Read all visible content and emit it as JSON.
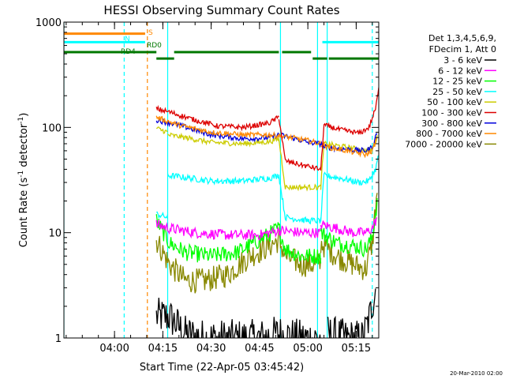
{
  "chart_data": {
    "type": "line",
    "title": "HESSI Observing Summary Count Rates",
    "xlabel": "Start Time (22-Apr-05 03:45:42)",
    "ylabel_main": "Count Rate (s",
    "ylabel_sup1": "-1",
    "ylabel_mid": " detector",
    "ylabel_sup2": "-1",
    "ylabel_end": ")",
    "y_scale": "log",
    "ylim": [
      1,
      1000
    ],
    "y_ticks": [
      {
        "value": 1,
        "label": "1"
      },
      {
        "value": 10,
        "label": "10"
      },
      {
        "value": 100,
        "label": "100"
      },
      {
        "value": 1000,
        "label": "1000"
      }
    ],
    "x_range_min": [
      -15.7,
      82
    ],
    "x_ticks": [
      {
        "value": 0,
        "label": "04:00"
      },
      {
        "value": 15,
        "label": "04:15"
      },
      {
        "value": 30,
        "label": "04:30"
      },
      {
        "value": 45,
        "label": "04:45"
      },
      {
        "value": 60,
        "label": "05:00"
      },
      {
        "value": 75,
        "label": "05:15"
      }
    ],
    "legend_header": [
      "Det 1,3,4,5,6,9,",
      "FDecim 1, Att 0"
    ],
    "series": [
      {
        "name": "3 - 6 keV",
        "color": "#000000"
      },
      {
        "name": "6 - 12 keV",
        "color": "#ff00ff"
      },
      {
        "name": "12 - 25 keV",
        "color": "#00ff00"
      },
      {
        "name": "25 - 50 keV",
        "color": "#00ffff"
      },
      {
        "name": "50 - 100 keV",
        "color": "#cccc00"
      },
      {
        "name": "100 - 300 keV",
        "color": "#dd0000"
      },
      {
        "name": "300 - 800 keV",
        "color": "#0000dd"
      },
      {
        "name": "800 - 7000 keV",
        "color": "#ff8800"
      },
      {
        "name": "7000 - 20000 keV",
        "color": "#888800"
      }
    ],
    "curves": [
      {
        "color": "#000000",
        "noise": 0.18,
        "segments": [
          [
            [
              13,
              1.6
            ],
            [
              17,
              1.6
            ],
            [
              22,
              1.1
            ],
            [
              28,
              1.0
            ],
            [
              35,
              1.0
            ],
            [
              45,
              1.0
            ],
            [
              51,
              1.1
            ]
          ],
          [
            [
              51,
              1.1
            ],
            [
              58,
              1.0
            ],
            [
              64,
              1.0
            ]
          ],
          [
            [
              66,
              1.1
            ],
            [
              72,
              1.0
            ],
            [
              77,
              1.0
            ],
            [
              79,
              1.5
            ],
            [
              81,
              3.0
            ]
          ]
        ]
      },
      {
        "color": "#888800",
        "noise": 0.12,
        "segments": [
          [
            [
              13,
              8.5
            ],
            [
              17,
              5
            ],
            [
              22,
              3.5
            ],
            [
              28,
              3.5
            ],
            [
              35,
              4
            ],
            [
              42,
              6
            ],
            [
              48,
              7.5
            ],
            [
              51,
              8.5
            ]
          ],
          [
            [
              51,
              8.5
            ],
            [
              53,
              6
            ],
            [
              58,
              5
            ],
            [
              64,
              5
            ]
          ],
          [
            [
              64,
              8
            ],
            [
              69,
              6
            ],
            [
              74,
              5
            ],
            [
              78,
              4.5
            ],
            [
              80,
              8
            ],
            [
              81.5,
              25
            ]
          ]
        ]
      },
      {
        "color": "#00ff00",
        "noise": 0.08,
        "segments": [
          [
            [
              13,
              13
            ],
            [
              17,
              8
            ],
            [
              22,
              6.5
            ],
            [
              30,
              6
            ],
            [
              38,
              6.5
            ],
            [
              45,
              8.5
            ],
            [
              51,
              11
            ]
          ],
          [
            [
              51,
              11
            ],
            [
              53,
              7
            ],
            [
              58,
              6
            ],
            [
              64,
              6
            ]
          ],
          [
            [
              64,
              10
            ],
            [
              69,
              8
            ],
            [
              74,
              7.5
            ],
            [
              78,
              7
            ],
            [
              80,
              9
            ],
            [
              81.5,
              20
            ]
          ]
        ]
      },
      {
        "color": "#ff00ff",
        "noise": 0.05,
        "segments": [
          [
            [
              13,
              12
            ],
            [
              17,
              11
            ],
            [
              25,
              10
            ],
            [
              35,
              9.5
            ],
            [
              45,
              9.5
            ],
            [
              51,
              10.5
            ]
          ],
          [
            [
              51,
              10.5
            ],
            [
              58,
              10
            ],
            [
              64,
              10
            ]
          ],
          [
            [
              64,
              12
            ],
            [
              69,
              11
            ],
            [
              74,
              10
            ],
            [
              78,
              10
            ],
            [
              80,
              11
            ],
            [
              81.5,
              14
            ]
          ]
        ]
      },
      {
        "color": "#00ffff",
        "noise": 0.03,
        "segments": [
          [
            [
              13,
              15
            ],
            [
              16.5,
              14
            ]
          ],
          [
            [
              16.5,
              35
            ],
            [
              20,
              34
            ],
            [
              30,
              31
            ],
            [
              40,
              31
            ],
            [
              48,
              33
            ],
            [
              51,
              35
            ]
          ],
          [
            [
              51,
              35
            ],
            [
              53,
              14
            ],
            [
              60,
              13
            ],
            [
              64,
              13
            ]
          ],
          [
            [
              64,
              13
            ],
            [
              65,
              35
            ],
            [
              70,
              33
            ],
            [
              76,
              30
            ],
            [
              79,
              31
            ],
            [
              81,
              40
            ],
            [
              82,
              55
            ]
          ]
        ]
      },
      {
        "color": "#cccc00",
        "noise": 0.025,
        "segments": [
          [
            [
              13,
              98
            ],
            [
              16.5,
              90
            ]
          ],
          [
            [
              16.5,
              85
            ],
            [
              22,
              80
            ],
            [
              30,
              72
            ],
            [
              40,
              70
            ],
            [
              48,
              73
            ],
            [
              51,
              78
            ]
          ],
          [
            [
              51,
              78
            ],
            [
              53,
              27
            ],
            [
              58,
              27
            ],
            [
              64,
              27
            ]
          ],
          [
            [
              64,
              27
            ],
            [
              65,
              70
            ],
            [
              72,
              65
            ],
            [
              78,
              60
            ],
            [
              80,
              62
            ],
            [
              81.5,
              80
            ]
          ]
        ]
      },
      {
        "color": "#0000dd",
        "noise": 0.025,
        "segments": [
          [
            [
              13,
              118
            ],
            [
              20,
              105
            ],
            [
              30,
              85
            ],
            [
              40,
              78
            ],
            [
              48,
              80
            ],
            [
              51,
              85
            ]
          ],
          [
            [
              51,
              85
            ],
            [
              55,
              80
            ],
            [
              60,
              72
            ],
            [
              64,
              70
            ]
          ],
          [
            [
              64,
              70
            ],
            [
              65,
              65
            ],
            [
              72,
              62
            ],
            [
              78,
              60
            ],
            [
              80,
              65
            ],
            [
              81.5,
              90
            ]
          ]
        ]
      },
      {
        "color": "#ff8800",
        "noise": 0.025,
        "segments": [
          [
            [
              13,
              125
            ],
            [
              20,
              105
            ],
            [
              30,
              90
            ],
            [
              40,
              85
            ],
            [
              48,
              85
            ],
            [
              51,
              83
            ]
          ],
          [
            [
              51,
              83
            ],
            [
              55,
              80
            ],
            [
              60,
              75
            ],
            [
              64,
              70
            ]
          ],
          [
            [
              64,
              70
            ],
            [
              66,
              65
            ],
            [
              72,
              60
            ],
            [
              78,
              55
            ],
            [
              80,
              60
            ],
            [
              81.5,
              80
            ]
          ]
        ]
      },
      {
        "color": "#dd0000",
        "noise": 0.025,
        "segments": [
          [
            [
              13,
              150
            ],
            [
              17,
              140
            ],
            [
              24,
              120
            ],
            [
              32,
              103
            ],
            [
              40,
              100
            ],
            [
              48,
              110
            ],
            [
              51,
              125
            ]
          ],
          [
            [
              51,
              125
            ],
            [
              53,
              48
            ],
            [
              58,
              44
            ],
            [
              64,
              40
            ]
          ],
          [
            [
              64,
              40
            ],
            [
              65,
              105
            ],
            [
              70,
              95
            ],
            [
              76,
              88
            ],
            [
              79,
              100
            ],
            [
              81,
              150
            ],
            [
              82,
              230
            ]
          ]
        ]
      }
    ],
    "flag_bars": [
      {
        "label": "S",
        "color": "#ff8800",
        "y_level": 1.4,
        "segments": [
          [
            -15.7,
            9.5
          ]
        ]
      },
      {
        "label": "N",
        "color": "#00ffff",
        "y_level": 2.6,
        "segments": [
          [
            -15.7,
            9.5
          ],
          [
            64.5,
            82
          ]
        ]
      },
      {
        "label": "RD0",
        "color": "#007700",
        "y_level": 4.0,
        "segments": [
          [
            -15.7,
            13
          ],
          [
            18.5,
            51
          ],
          [
            52,
            61
          ]
        ]
      },
      {
        "label": "RD4",
        "color": "#007700",
        "y_level": 4.9,
        "segments": [
          [
            13,
            18.5
          ],
          [
            61.5,
            66
          ],
          [
            66.5,
            82
          ]
        ]
      }
    ],
    "vlines": [
      {
        "x": -15.7,
        "color": "#00ffff",
        "dashed": false
      },
      {
        "x": 3,
        "color": "#00ffff",
        "dashed": true
      },
      {
        "x": 10.2,
        "color": "#ff8800",
        "dashed": true
      },
      {
        "x": 16.5,
        "color": "#00ffff",
        "dashed": false
      },
      {
        "x": 51.5,
        "color": "#00ffff",
        "dashed": false
      },
      {
        "x": 63,
        "color": "#00ffff",
        "dashed": false
      },
      {
        "x": 66,
        "color": "#00ffff",
        "dashed": false
      },
      {
        "x": 80,
        "color": "#00ffff",
        "dashed": true
      }
    ],
    "grid": false,
    "legend_placement": "right"
  },
  "footer_timestamp": "20-Mar-2010 02:00"
}
